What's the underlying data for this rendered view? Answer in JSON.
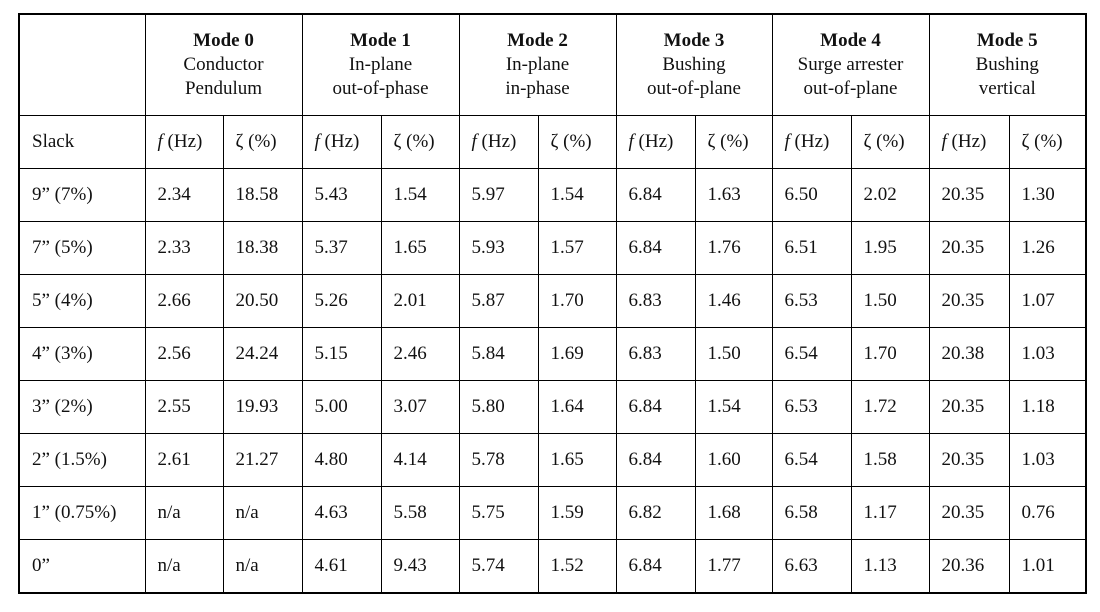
{
  "table": {
    "corner": "",
    "modes": [
      {
        "name": "Mode 0",
        "lines": [
          "Conductor",
          "Pendulum"
        ]
      },
      {
        "name": "Mode 1",
        "lines": [
          "In-plane",
          "out-of-phase"
        ]
      },
      {
        "name": "Mode 2",
        "lines": [
          "In-plane",
          "in-phase"
        ]
      },
      {
        "name": "Mode 3",
        "lines": [
          "Bushing",
          "out-of-plane"
        ]
      },
      {
        "name": "Mode 4",
        "lines": [
          "Surge arrester",
          "out-of-plane"
        ]
      },
      {
        "name": "Mode 5",
        "lines": [
          "Bushing",
          "vertical"
        ]
      }
    ],
    "row_header": "Slack",
    "columns": [
      {
        "symbol": "f",
        "unit": "(Hz)"
      },
      {
        "symbol": "ζ",
        "unit": "(%)"
      },
      {
        "symbol": "f",
        "unit": "(Hz)"
      },
      {
        "symbol": "ζ",
        "unit": "(%)"
      },
      {
        "symbol": "f",
        "unit": "(Hz)"
      },
      {
        "symbol": "ζ",
        "unit": "(%)"
      },
      {
        "symbol": "f",
        "unit": "(Hz)"
      },
      {
        "symbol": "ζ",
        "unit": "(%)"
      },
      {
        "symbol": "f",
        "unit": "(Hz)"
      },
      {
        "symbol": "ζ",
        "unit": "(%)"
      },
      {
        "symbol": "f",
        "unit": "(Hz)"
      },
      {
        "symbol": "ζ",
        "unit": "(%)"
      }
    ],
    "rows": [
      {
        "label": "9” (7%)",
        "cells": [
          "2.34",
          "18.58",
          "5.43",
          "1.54",
          "5.97",
          "1.54",
          "6.84",
          "1.63",
          "6.50",
          "2.02",
          "20.35",
          "1.30"
        ]
      },
      {
        "label": "7” (5%)",
        "cells": [
          "2.33",
          "18.38",
          "5.37",
          "1.65",
          "5.93",
          "1.57",
          "6.84",
          "1.76",
          "6.51",
          "1.95",
          "20.35",
          "1.26"
        ]
      },
      {
        "label": "5” (4%)",
        "cells": [
          "2.66",
          "20.50",
          "5.26",
          "2.01",
          "5.87",
          "1.70",
          "6.83",
          "1.46",
          "6.53",
          "1.50",
          "20.35",
          "1.07"
        ]
      },
      {
        "label": "4” (3%)",
        "cells": [
          "2.56",
          "24.24",
          "5.15",
          "2.46",
          "5.84",
          "1.69",
          "6.83",
          "1.50",
          "6.54",
          "1.70",
          "20.38",
          "1.03"
        ]
      },
      {
        "label": "3” (2%)",
        "cells": [
          "2.55",
          "19.93",
          "5.00",
          "3.07",
          "5.80",
          "1.64",
          "6.84",
          "1.54",
          "6.53",
          "1.72",
          "20.35",
          "1.18"
        ]
      },
      {
        "label": "2” (1.5%)",
        "cells": [
          "2.61",
          "21.27",
          "4.80",
          "4.14",
          "5.78",
          "1.65",
          "6.84",
          "1.60",
          "6.54",
          "1.58",
          "20.35",
          "1.03"
        ]
      },
      {
        "label": "1” (0.75%)",
        "cells": [
          "n/a",
          "n/a",
          "4.63",
          "5.58",
          "5.75",
          "1.59",
          "6.82",
          "1.68",
          "6.58",
          "1.17",
          "20.35",
          "0.76"
        ]
      },
      {
        "label": "0”",
        "cells": [
          "n/a",
          "n/a",
          "4.61",
          "9.43",
          "5.74",
          "1.52",
          "6.84",
          "1.77",
          "6.63",
          "1.13",
          "20.36",
          "1.01"
        ]
      }
    ]
  }
}
